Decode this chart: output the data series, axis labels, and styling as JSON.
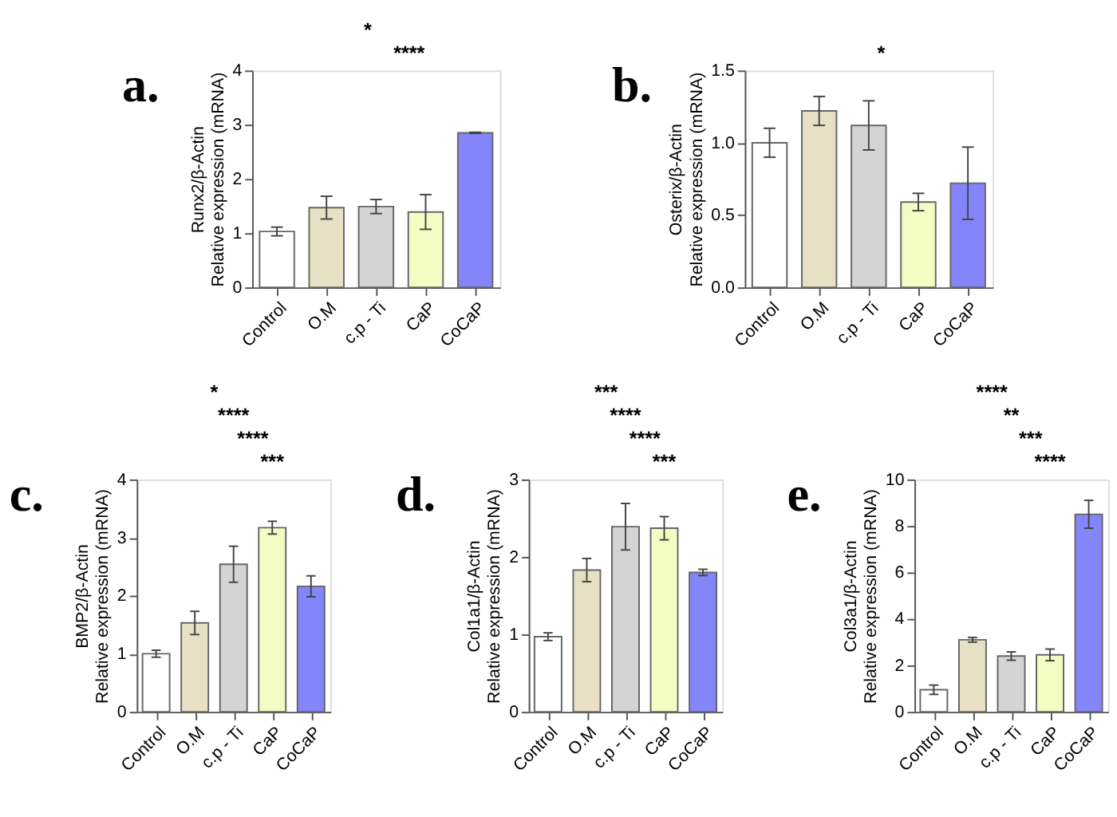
{
  "chart_data": [
    {
      "type": "bar",
      "title": "a.",
      "ylabel": "Runx2/β-Actin\nRelative expression (mRNA)",
      "categories": [
        "Control",
        "O.M",
        "c.p - Ti",
        "CaP",
        "CoCaP"
      ],
      "values": [
        1.03,
        1.47,
        1.49,
        1.39,
        2.85
      ],
      "errors": [
        0.08,
        0.21,
        0.13,
        0.32,
        0.01
      ],
      "colors": [
        "#ffffff",
        "#e8e0c4",
        "#d4d4d4",
        "#f3fcc2",
        "#8585fb"
      ],
      "ylim": [
        0,
        4
      ],
      "yticks": [
        0,
        1,
        2,
        3,
        4
      ],
      "grid": false,
      "legend": false,
      "annotations": [
        "*",
        "****"
      ]
    },
    {
      "type": "bar",
      "title": "b.",
      "ylabel": "Osterix/β-Actin\nRelative expression (mRNA)",
      "categories": [
        "Control",
        "O.M",
        "c.p - Ti",
        "CaP",
        "CoCaP"
      ],
      "values": [
        1.0,
        1.22,
        1.12,
        0.59,
        0.72
      ],
      "errors": [
        0.1,
        0.1,
        0.17,
        0.06,
        0.25
      ],
      "colors": [
        "#ffffff",
        "#e8e0c4",
        "#d4d4d4",
        "#f3fcc2",
        "#8585fb"
      ],
      "ylim": [
        0,
        1.5
      ],
      "yticks": [
        {
          "value": 0,
          "label": "0.0"
        },
        {
          "value": 0.5,
          "label": "0.5"
        },
        {
          "value": 1,
          "label": "1.0"
        },
        {
          "value": 1.5,
          "label": "1.5"
        }
      ],
      "grid": false,
      "legend": false,
      "annotations": [
        "*"
      ]
    },
    {
      "type": "bar",
      "title": "c.",
      "ylabel": "BMP2/β-Actin\nRelative expression (mRNA)",
      "categories": [
        "Control",
        "O.M",
        "c.p - Ti",
        "CaP",
        "CoCaP"
      ],
      "values": [
        1.0,
        1.53,
        2.54,
        3.17,
        2.16
      ],
      "errors": [
        0.06,
        0.2,
        0.31,
        0.11,
        0.18
      ],
      "colors": [
        "#ffffff",
        "#e8e0c4",
        "#d4d4d4",
        "#f3fcc2",
        "#8585fb"
      ],
      "ylim": [
        0,
        4
      ],
      "yticks": [
        0,
        1,
        2,
        3,
        4
      ],
      "grid": false,
      "legend": false,
      "annotations": [
        "*",
        "****",
        "****",
        "***"
      ]
    },
    {
      "type": "bar",
      "title": "d.",
      "ylabel": "Col1a1/β-Actin\nRelative expression (mRNA)",
      "categories": [
        "Control",
        "O.M",
        "c.p - Ti",
        "CaP",
        "CoCaP"
      ],
      "values": [
        0.97,
        1.83,
        2.39,
        2.37,
        1.8
      ],
      "errors": [
        0.05,
        0.15,
        0.3,
        0.15,
        0.04
      ],
      "colors": [
        "#ffffff",
        "#e8e0c4",
        "#d4d4d4",
        "#f3fcc2",
        "#8585fb"
      ],
      "ylim": [
        0,
        3
      ],
      "yticks": [
        0,
        1,
        2,
        3
      ],
      "grid": false,
      "legend": false,
      "annotations": [
        "***",
        "****",
        "****",
        "***"
      ]
    },
    {
      "type": "bar",
      "title": "e.",
      "ylabel": "Col3a1/β-Actin\nRelative expression (mRNA)",
      "categories": [
        "Control",
        "O.M",
        "c.p - Ti",
        "CaP",
        "CoCaP"
      ],
      "values": [
        0.95,
        3.1,
        2.4,
        2.45,
        8.5
      ],
      "errors": [
        0.2,
        0.1,
        0.18,
        0.25,
        0.6
      ],
      "colors": [
        "#ffffff",
        "#e8e0c4",
        "#d4d4d4",
        "#f3fcc2",
        "#8585fb"
      ],
      "ylim": [
        0,
        10
      ],
      "yticks": [
        0,
        2,
        4,
        6,
        8,
        10
      ],
      "grid": false,
      "legend": false,
      "annotations": [
        "****",
        "**",
        "***",
        "****"
      ]
    }
  ]
}
